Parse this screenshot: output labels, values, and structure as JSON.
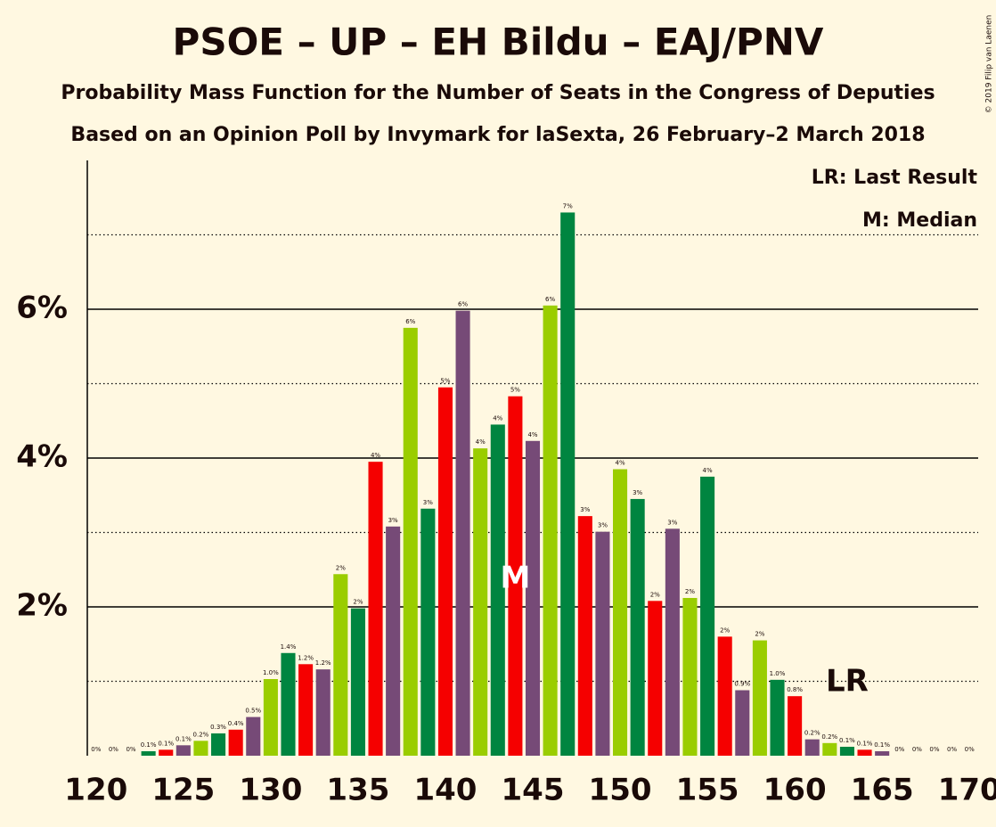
{
  "chart_data": {
    "type": "bar",
    "title": "PSOE – UP – EH Bildu – EAJ/PNV",
    "subtitle": "Probability Mass Function for the Number of Seats in the Congress of Deputies",
    "subtitle2": "Based on an Opinion Poll by Invymark for laSexta, 26 February–2 March 2018",
    "copyright": "© 2019 Filip van Laenen",
    "legend": [
      "LR: Last Result",
      "M: Median"
    ],
    "x": [
      120,
      121,
      122,
      123,
      124,
      125,
      126,
      127,
      128,
      129,
      130,
      131,
      132,
      133,
      134,
      135,
      136,
      137,
      138,
      139,
      140,
      141,
      142,
      143,
      144,
      145,
      146,
      147,
      148,
      149,
      150,
      151,
      152,
      153,
      154,
      155,
      156,
      157,
      158,
      159,
      160,
      161,
      162,
      163,
      164,
      165,
      166,
      167,
      168,
      169,
      170
    ],
    "values": [
      0,
      0,
      0,
      0.06,
      0.08,
      0.14,
      0.2,
      0.3,
      0.35,
      0.52,
      1.03,
      1.38,
      1.23,
      1.16,
      2.44,
      1.98,
      3.95,
      3.08,
      5.75,
      3.32,
      4.95,
      5.98,
      4.13,
      4.45,
      4.83,
      4.23,
      6.05,
      7.3,
      3.22,
      3.01,
      3.85,
      3.45,
      2.08,
      3.05,
      2.12,
      3.75,
      1.6,
      0.88,
      1.55,
      1.02,
      0.8,
      0.22,
      0.17,
      0.12,
      0.08,
      0.06,
      0,
      0,
      0,
      0,
      0
    ],
    "value_labels": [
      "0%",
      "0%",
      "0%",
      "0.1%",
      "0.1%",
      "0.1%",
      "0.2%",
      "0.3%",
      "0.4%",
      "0.5%",
      "1.0%",
      "1.4%",
      "1.2%",
      "1.2%",
      "2%",
      "2%",
      "4%",
      "3%",
      "6%",
      "3%",
      "5%",
      "6%",
      "4%",
      "4%",
      "5%",
      "4%",
      "6%",
      "7%",
      "3%",
      "3%",
      "4%",
      "3%",
      "2%",
      "3%",
      "2%",
      "4%",
      "2%",
      "0.9%",
      "2%",
      "1.0%",
      "0.8%",
      "0.2%",
      "0.2%",
      "0.1%",
      "0.1%",
      "0.1%",
      "0%",
      "0%",
      "0%",
      "0%",
      "0%"
    ],
    "colors": [
      "#f50000",
      "#764a77",
      "#9acd00",
      "#008540"
    ],
    "xlim": [
      119.5,
      170.5
    ],
    "xticks": [
      120,
      125,
      130,
      135,
      140,
      145,
      150,
      155,
      160,
      165,
      170
    ],
    "ylim": [
      0,
      8
    ],
    "yticks": [
      {
        "value": 2,
        "label": "2%"
      },
      {
        "value": 4,
        "label": "4%"
      },
      {
        "value": 6,
        "label": "6%"
      }
    ],
    "minor_yticks": [
      1,
      3,
      5,
      7
    ],
    "median": {
      "x": 144,
      "label": "M"
    },
    "last_result": {
      "x": 163,
      "label": "LR"
    }
  }
}
